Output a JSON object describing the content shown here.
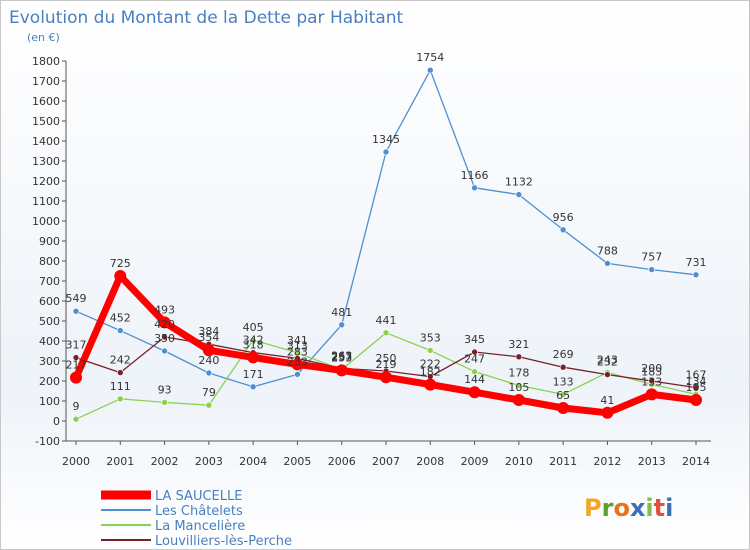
{
  "chart_data": {
    "type": "line",
    "title": "Evolution du Montant de la Dette par Habitant",
    "subtitle": "(en €)",
    "xlabel": "",
    "ylabel": "",
    "x": [
      "2000",
      "2001",
      "2002",
      "2003",
      "2004",
      "2005",
      "2006",
      "2007",
      "2008",
      "2009",
      "2010",
      "2011",
      "2012",
      "2013",
      "2014"
    ],
    "ylim": [
      -100,
      1800
    ],
    "yticks": [
      -100,
      0,
      100,
      200,
      300,
      400,
      500,
      600,
      700,
      800,
      900,
      1000,
      1100,
      1200,
      1300,
      1400,
      1500,
      1600,
      1700,
      1800
    ],
    "grid": false,
    "legend_position": "bottom-left",
    "series": [
      {
        "name": "LA SAUCELLE",
        "color": "#ff0000",
        "values": [
          217,
          725,
          493,
          354,
          318,
          283,
          253,
          219,
          182,
          144,
          105,
          65,
          41,
          133,
          105
        ]
      },
      {
        "name": "Les Châtelets",
        "color": "#4f8fd1",
        "values": [
          549,
          452,
          350,
          240,
          171,
          233,
          481,
          1345,
          1754,
          1166,
          1132,
          956,
          788,
          757,
          731
        ]
      },
      {
        "name": "La Mancelière",
        "color": "#8cd050",
        "values": [
          9,
          111,
          93,
          79,
          405,
          341,
          257,
          441,
          353,
          247,
          178,
          133,
          243,
          183,
          134
        ]
      },
      {
        "name": "Louvilliers-lès-Perche",
        "color": "#7a1f2b",
        "values": [
          317,
          242,
          420,
          384,
          342,
          313,
          263,
          250,
          222,
          345,
          321,
          269,
          232,
          200,
          167
        ]
      }
    ]
  },
  "logo": {
    "text": "Proxiti",
    "colors": [
      "#f5a623",
      "#5aa02c",
      "#e8731a",
      "#3b6fb6",
      "#7cc243",
      "#e84c3d",
      "#3b6fb6"
    ]
  }
}
